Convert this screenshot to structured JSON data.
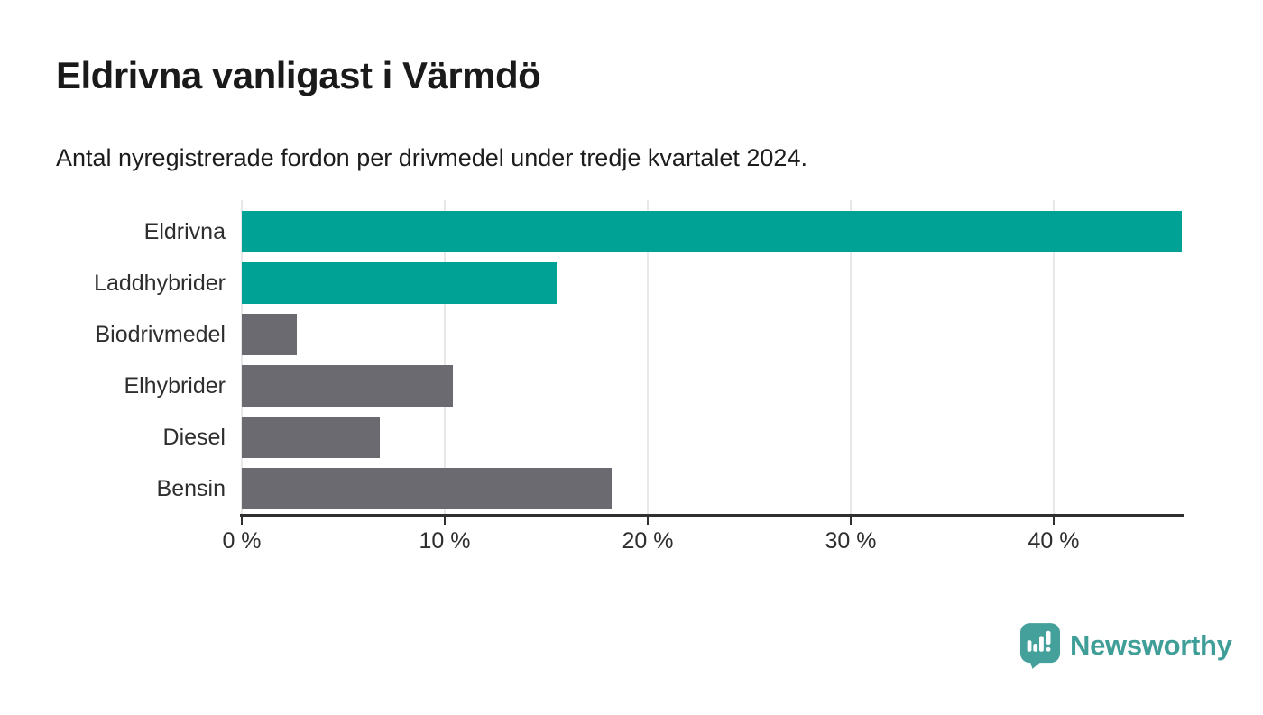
{
  "header": {
    "title": "Eldrivna vanligast i Värmdö",
    "subtitle": "Antal nyregistrerade fordon per drivmedel under tredje kvartalet 2024."
  },
  "chart_data": {
    "type": "bar",
    "orientation": "horizontal",
    "title": "Eldrivna vanligast i Värmdö",
    "subtitle": "Antal nyregistrerade fordon per drivmedel under tredje kvartalet 2024.",
    "categories": [
      "Eldrivna",
      "Laddhybrider",
      "Biodrivmedel",
      "Elhybrider",
      "Diesel",
      "Bensin"
    ],
    "values": [
      46.3,
      15.5,
      2.7,
      10.4,
      6.8,
      18.2
    ],
    "unit": "%",
    "bar_colors": [
      "#00a296",
      "#00a296",
      "#6a6a70",
      "#6a6a70",
      "#6a6a70",
      "#6a6a70"
    ],
    "highlight_color": "#00a296",
    "default_color": "#6a6a70",
    "xlim": [
      0,
      46.4
    ],
    "x_ticks": [
      {
        "value": 0,
        "label": "0 %"
      },
      {
        "value": 10,
        "label": "10 %"
      },
      {
        "value": 20,
        "label": "20 %"
      },
      {
        "value": 30,
        "label": "30 %"
      },
      {
        "value": 40,
        "label": "40 %"
      }
    ],
    "grid": true,
    "legend": false,
    "ylabel": "",
    "xlabel": ""
  },
  "footer": {
    "brand": "Newsworthy"
  },
  "colors": {
    "background": "#ffffff",
    "bar_teal": "#00a296",
    "bar_gray": "#6a6a70",
    "gridline": "#e8e8e8",
    "axis": "#2f2f2f",
    "text": "#1a1a1a",
    "brand_teal": "#3f9e97"
  }
}
